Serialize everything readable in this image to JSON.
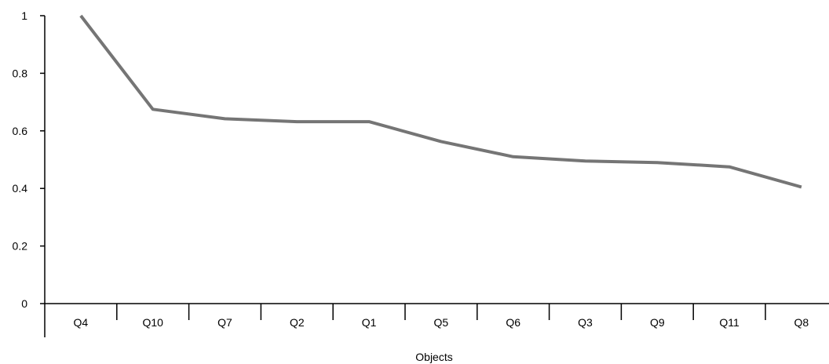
{
  "chart_data": {
    "type": "line",
    "title": "",
    "xlabel": "Objects",
    "ylabel": "",
    "categories": [
      "Q4",
      "Q10",
      "Q7",
      "Q2",
      "Q1",
      "Q5",
      "Q6",
      "Q3",
      "Q9",
      "Q11",
      "Q8"
    ],
    "series": [
      {
        "values": [
          1.0,
          0.675,
          0.642,
          0.632,
          0.632,
          0.563,
          0.51,
          0.495,
          0.49,
          0.475,
          0.405
        ],
        "color": "#757575"
      }
    ],
    "ylim": [
      0,
      1
    ],
    "yticks": [
      0,
      0.2,
      0.4,
      0.6,
      0.8,
      1
    ],
    "ytick_labels": [
      "0",
      "0.2",
      "0.4",
      "0.6",
      "0.8",
      "1"
    ],
    "grid": false,
    "legend": "none"
  }
}
